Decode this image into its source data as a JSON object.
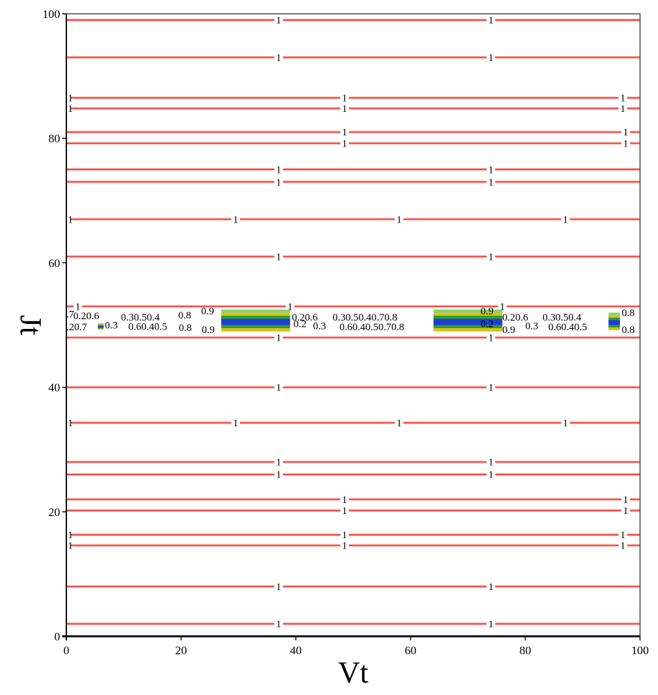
{
  "chart_data": {
    "type": "contour",
    "title": "",
    "xlabel": "Vt",
    "ylabel": "Jt",
    "xlim": [
      0,
      100
    ],
    "ylim": [
      0,
      100
    ],
    "xticks": [
      0,
      20,
      40,
      60,
      80,
      100
    ],
    "yticks": [
      0,
      20,
      40,
      60,
      80,
      100
    ],
    "grid": false,
    "colors": {
      "level_1": "#e8322f",
      "level_1_halo": "#ffb0aa",
      "band_green": "#2e9c3a",
      "band_blue": "#1f3fd0",
      "band_yellow": "#d7c21a",
      "band_light_green": "#8cd37a"
    },
    "contour_lines": [
      {
        "y": 99,
        "level": "1",
        "label_x": [
          37,
          74
        ]
      },
      {
        "y": 93,
        "level": "1",
        "label_x": [
          37,
          74
        ]
      },
      {
        "y": 86.5,
        "level": "1",
        "label_x": [
          0,
          48.5,
          97
        ]
      },
      {
        "y": 84.8,
        "level": "1",
        "label_x": [
          0,
          48.5,
          97
        ]
      },
      {
        "y": 81,
        "level": "1",
        "label_x": [
          48.5,
          97.5
        ]
      },
      {
        "y": 79.2,
        "level": "1",
        "label_x": [
          48.5,
          97.5
        ]
      },
      {
        "y": 75,
        "level": "1",
        "label_x": [
          37,
          74
        ]
      },
      {
        "y": 73,
        "level": "1",
        "label_x": [
          37,
          74
        ]
      },
      {
        "y": 67,
        "level": "1",
        "label_x": [
          0,
          29.5,
          58,
          87
        ]
      },
      {
        "y": 61,
        "level": "1",
        "label_x": [
          37,
          74
        ]
      },
      {
        "y": 53,
        "level": "1",
        "label_x": [
          2,
          39,
          76
        ]
      },
      {
        "y": 48,
        "level": "1",
        "label_x": [
          37,
          74
        ]
      },
      {
        "y": 40,
        "level": "1",
        "label_x": [
          37,
          74
        ]
      },
      {
        "y": 34.3,
        "level": "1",
        "label_x": [
          0,
          29.5,
          58,
          87
        ]
      },
      {
        "y": 28,
        "level": "1",
        "label_x": [
          37,
          74
        ]
      },
      {
        "y": 26,
        "level": "1",
        "label_x": [
          37,
          74
        ]
      },
      {
        "y": 22,
        "level": "1",
        "label_x": [
          48.5,
          97.5
        ]
      },
      {
        "y": 20.2,
        "level": "1",
        "label_x": [
          48.5,
          97.5
        ]
      },
      {
        "y": 16.3,
        "level": "1",
        "label_x": [
          0,
          48.5,
          97
        ]
      },
      {
        "y": 14.6,
        "level": "1",
        "label_x": [
          0,
          48.5,
          97
        ]
      },
      {
        "y": 8,
        "level": "1",
        "label_x": [
          37,
          74
        ]
      },
      {
        "y": 2,
        "level": "1",
        "label_x": [
          37,
          74
        ]
      }
    ],
    "bands": [
      {
        "x": [
          27,
          39
        ],
        "y": [
          49.0,
          52.5
        ]
      },
      {
        "x": [
          64,
          76
        ],
        "y": [
          49.0,
          52.5
        ]
      },
      {
        "x": [
          94.5,
          96.5
        ],
        "y": [
          49.2,
          52.0
        ]
      },
      {
        "x": [
          5.5,
          6.5
        ],
        "y": [
          49.3,
          50.3
        ]
      }
    ],
    "annotations": [
      {
        "x": 0,
        "y": 51.8,
        "text": ".7"
      },
      {
        "x": 1.2,
        "y": 51.5,
        "text": "0.20.6"
      },
      {
        "x": 9.5,
        "y": 51.3,
        "text": "0.30.50.4"
      },
      {
        "x": 19.5,
        "y": 51.6,
        "text": "0.8"
      },
      {
        "x": 23.5,
        "y": 52.3,
        "text": "0.9"
      },
      {
        "x": 0,
        "y": 49.7,
        "text": ".20.7"
      },
      {
        "x": 6.7,
        "y": 50.0,
        "text": "0.3"
      },
      {
        "x": 10.8,
        "y": 49.8,
        "text": "0.60.40.5"
      },
      {
        "x": 19.6,
        "y": 49.6,
        "text": "0.8"
      },
      {
        "x": 23.6,
        "y": 49.3,
        "text": "0.9"
      },
      {
        "x": 39.3,
        "y": 51.3,
        "text": "0.20.6"
      },
      {
        "x": 46.4,
        "y": 51.3,
        "text": "0.30.50.40.70.8"
      },
      {
        "x": 39.6,
        "y": 50.2,
        "text": "0.2"
      },
      {
        "x": 43.0,
        "y": 49.9,
        "text": "0.3"
      },
      {
        "x": 47.6,
        "y": 49.7,
        "text": "0.60.40.50.70.8"
      },
      {
        "x": 72.2,
        "y": 52.3,
        "text": "0.9"
      },
      {
        "x": 72.2,
        "y": 50.2,
        "text": "0.2"
      },
      {
        "x": 76.0,
        "y": 51.3,
        "text": "0.20.6"
      },
      {
        "x": 83.0,
        "y": 51.3,
        "text": "0.30.50.4"
      },
      {
        "x": 76.0,
        "y": 49.3,
        "text": "0.9"
      },
      {
        "x": 80.0,
        "y": 49.9,
        "text": "0.3"
      },
      {
        "x": 84.0,
        "y": 49.7,
        "text": "0.60.40.5"
      },
      {
        "x": 96.8,
        "y": 52.0,
        "text": "0.8"
      },
      {
        "x": 96.8,
        "y": 49.3,
        "text": "0.8"
      }
    ]
  }
}
